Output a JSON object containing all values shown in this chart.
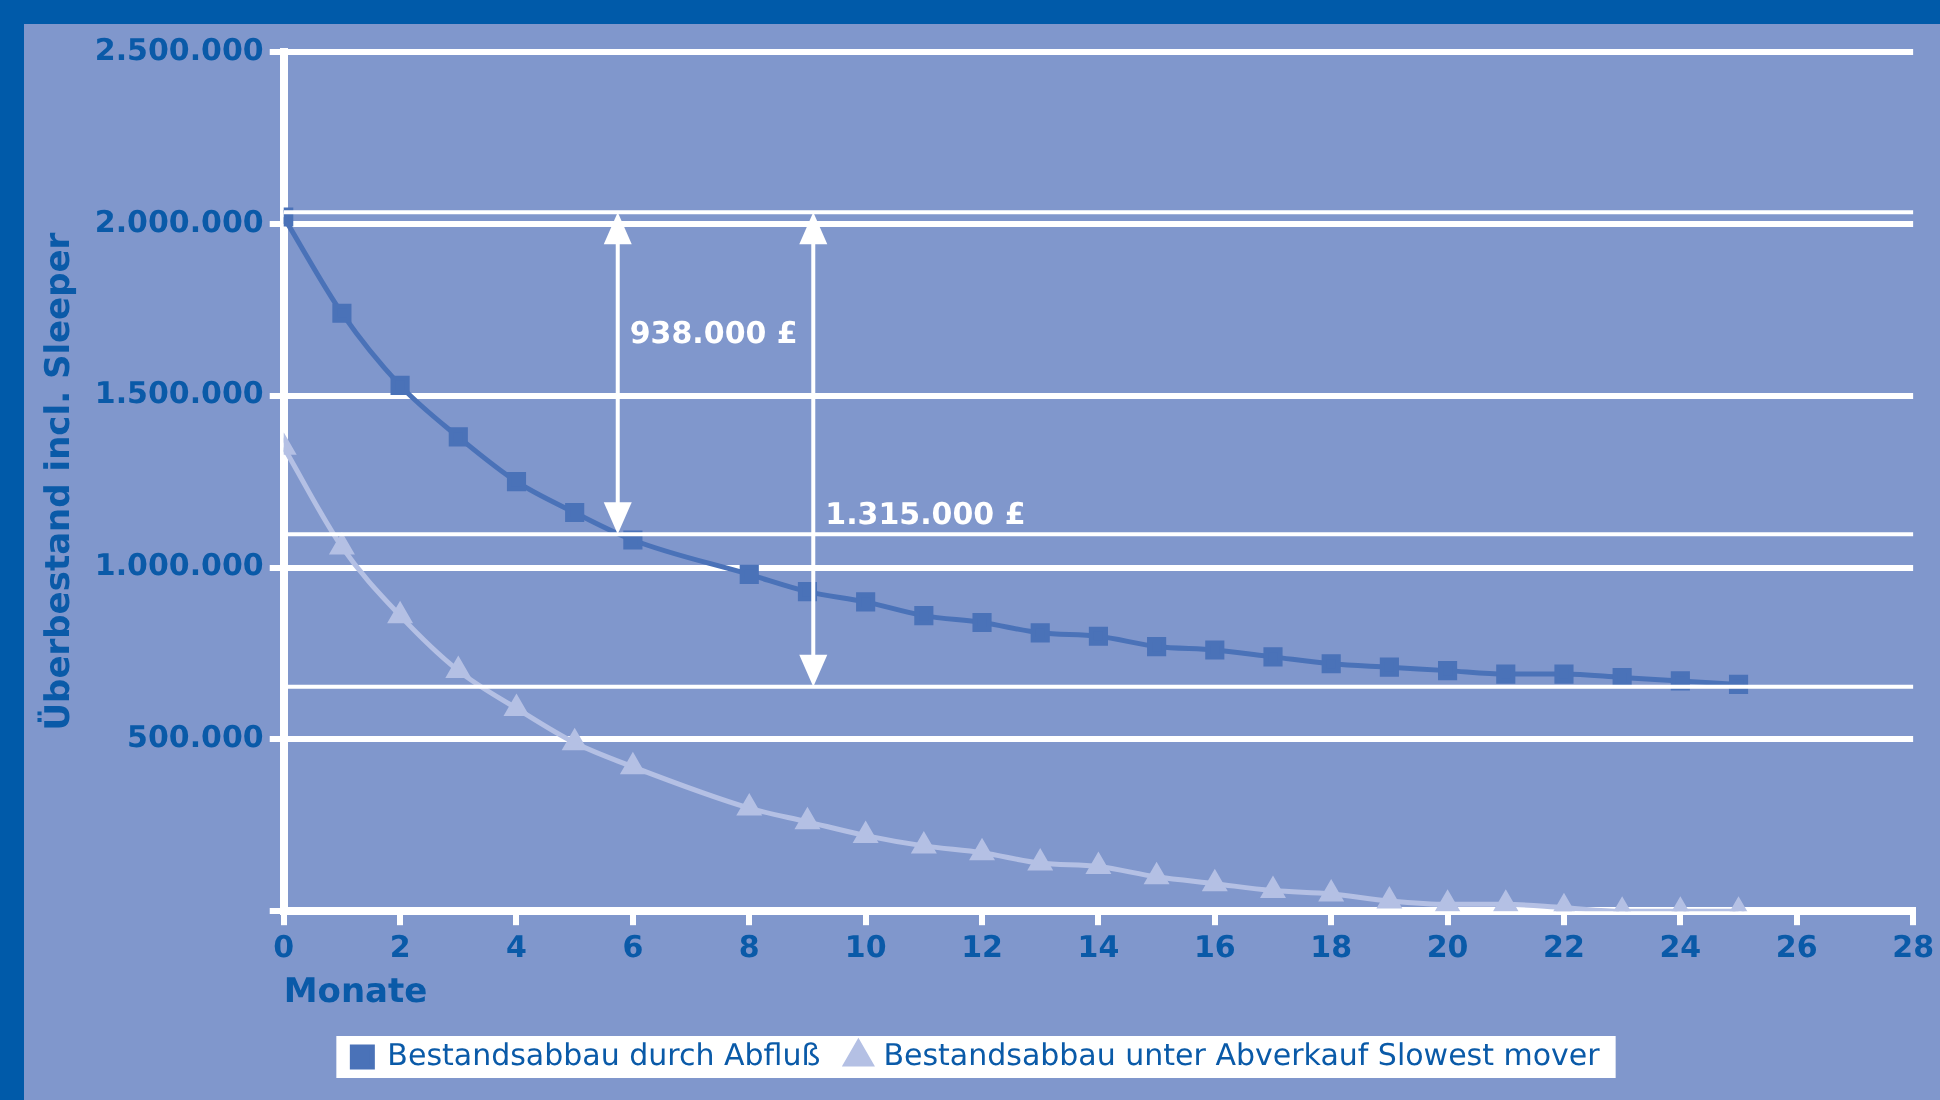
{
  "chart_data": {
    "type": "line",
    "xlabel": "Monate",
    "ylabel": "Überbestand incl. Sleeper",
    "x": [
      0,
      1,
      2,
      3,
      4,
      5,
      6,
      7,
      8,
      9,
      10,
      11,
      12,
      13,
      14,
      15,
      16,
      17,
      18,
      19,
      20,
      21,
      22,
      23,
      24,
      25
    ],
    "series": [
      {
        "name": "Bestandsabbau durch Abfluß",
        "color": "#4a72b8",
        "marker": "square",
        "values": [
          2020000,
          1740000,
          1530000,
          1380000,
          1250000,
          1160000,
          1080000,
          null,
          980000,
          930000,
          900000,
          860000,
          840000,
          810000,
          800000,
          770000,
          760000,
          740000,
          720000,
          710000,
          700000,
          690000,
          690000,
          680000,
          670000,
          660000
        ]
      },
      {
        "name": "Bestandsabbau unter Abverkauf Slowest mover",
        "color": "#b4c0e4",
        "marker": "triangle",
        "values": [
          1350000,
          1060000,
          860000,
          700000,
          590000,
          490000,
          420000,
          null,
          300000,
          260000,
          220000,
          190000,
          170000,
          140000,
          130000,
          100000,
          80000,
          60000,
          50000,
          30000,
          20000,
          20000,
          10000,
          0,
          0,
          0
        ]
      }
    ],
    "xlim": [
      0,
      28
    ],
    "xticks": [
      0,
      2,
      4,
      6,
      8,
      10,
      12,
      14,
      16,
      18,
      20,
      22,
      24,
      26,
      28
    ],
    "ylim": [
      0,
      2500000
    ],
    "yticks": [
      {
        "value": 0,
        "label": null
      },
      {
        "value": 500000,
        "label": "500.000"
      },
      {
        "value": 1000000,
        "label": "1.000.000"
      },
      {
        "value": 1500000,
        "label": "1.500.000"
      },
      {
        "value": 2000000,
        "label": "2.000.000"
      },
      {
        "value": 2500000,
        "label": "2.500.000"
      }
    ],
    "grid": "y",
    "legend": "bottom",
    "line_style": "solid",
    "ref_lines": [
      {
        "axis": "y",
        "value": 2034000,
        "color": "#ffffff"
      },
      {
        "axis": "y",
        "value": 1097000,
        "color": "#ffffff"
      },
      {
        "axis": "y",
        "value": 653000,
        "color": "#ffffff"
      }
    ],
    "annotations": [
      "938.000 £",
      "1.315.000 £"
    ]
  }
}
